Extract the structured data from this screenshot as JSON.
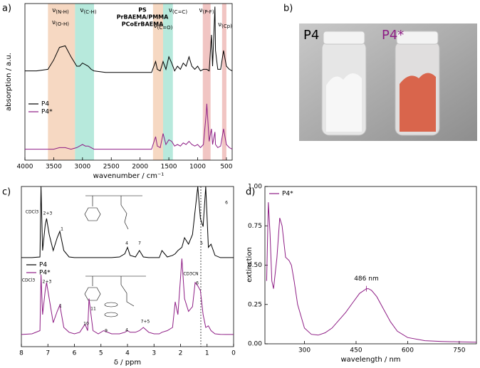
{
  "chart_data": [
    {
      "type": "line",
      "panel_label": "a)",
      "xlabel": "wavenumber / cm⁻¹",
      "ylabel": "absorption / a.u.",
      "x": [
        4000,
        3800,
        3600,
        3500,
        3400,
        3300,
        3200,
        3100,
        3050,
        3000,
        2950,
        2900,
        2850,
        2800,
        2600,
        2400,
        2200,
        2000,
        1800,
        1730,
        1700,
        1650,
        1600,
        1550,
        1500,
        1450,
        1400,
        1350,
        1300,
        1250,
        1200,
        1150,
        1100,
        1050,
        1000,
        950,
        900,
        850,
        840,
        800,
        760,
        740,
        700,
        690,
        650,
        600,
        550,
        500,
        450,
        400
      ],
      "series": [
        {
          "name": "P4",
          "color": "#000000",
          "values": [
            0.57,
            0.57,
            0.58,
            0.64,
            0.72,
            0.73,
            0.66,
            0.6,
            0.6,
            0.62,
            0.61,
            0.6,
            0.58,
            0.57,
            0.56,
            0.56,
            0.56,
            0.56,
            0.56,
            0.63,
            0.58,
            0.57,
            0.63,
            0.58,
            0.66,
            0.62,
            0.57,
            0.6,
            0.58,
            0.62,
            0.6,
            0.66,
            0.6,
            0.58,
            0.6,
            0.57,
            0.58,
            0.58,
            0.58,
            0.57,
            0.8,
            0.6,
            0.98,
            0.7,
            0.58,
            0.58,
            0.7,
            0.6,
            0.58,
            0.57
          ]
        },
        {
          "name": "P4*",
          "color": "#8e1d85",
          "values": [
            0.07,
            0.07,
            0.07,
            0.07,
            0.08,
            0.08,
            0.07,
            0.08,
            0.09,
            0.1,
            0.09,
            0.09,
            0.08,
            0.07,
            0.07,
            0.07,
            0.07,
            0.07,
            0.07,
            0.15,
            0.09,
            0.08,
            0.17,
            0.1,
            0.13,
            0.12,
            0.09,
            0.1,
            0.09,
            0.11,
            0.1,
            0.12,
            0.1,
            0.09,
            0.1,
            0.08,
            0.1,
            0.3,
            0.36,
            0.12,
            0.2,
            0.1,
            0.18,
            0.1,
            0.08,
            0.09,
            0.2,
            0.1,
            0.08,
            0.07
          ]
        }
      ],
      "bands": [
        {
          "name": "PS",
          "color": "#5fcfb1",
          "ranges": [
            [
              3130,
              2800
            ],
            [
              1600,
              1430
            ]
          ]
        },
        {
          "name": "PrBAEMA/PMMA",
          "color": "#eba978",
          "ranges": [
            [
              3600,
              3130
            ],
            [
              1775,
              1600
            ]
          ]
        },
        {
          "name": "PCoErBAEMA",
          "color": "#e07f79",
          "ranges": [
            [
              910,
              775
            ],
            [
              575,
              500
            ]
          ]
        }
      ],
      "annotations": [
        "ν(N-H)",
        "ν(O-H)",
        "ν(C-H)",
        "ν(C=O)",
        "ν(C=C)",
        "ν(P-F)",
        "ν(Cp)"
      ],
      "xlim": [
        4000,
        400
      ],
      "xticks": [
        4000,
        3500,
        3000,
        2500,
        2000,
        1500,
        1000,
        500
      ],
      "ylim": [
        0,
        1
      ]
    },
    {
      "type": "line",
      "panel_label": "c)",
      "xlabel": "δ / ppm",
      "x": [
        8,
        7.6,
        7.3,
        7.26,
        7.2,
        7.1,
        7.05,
        6.95,
        6.8,
        6.65,
        6.55,
        6.4,
        6.2,
        6,
        5.8,
        5.6,
        5.5,
        5.45,
        5.3,
        5.1,
        4.9,
        4.6,
        4.3,
        4.1,
        4.0,
        3.9,
        3.7,
        3.55,
        3.4,
        3.2,
        3.0,
        2.8,
        2.7,
        2.5,
        2.3,
        2.2,
        2.1,
        1.95,
        1.85,
        1.7,
        1.55,
        1.45,
        1.35,
        1.25,
        1.15,
        1.05,
        0.95,
        0.85,
        0.7,
        0.5,
        0.3,
        0
      ],
      "series": [
        {
          "name": "P4",
          "color": "#000000",
          "values": [
            0.556,
            0.556,
            0.56,
            1.0,
            0.6,
            0.76,
            0.8,
            0.7,
            0.6,
            0.68,
            0.72,
            0.6,
            0.56,
            0.556,
            0.556,
            0.556,
            0.556,
            0.556,
            0.556,
            0.556,
            0.556,
            0.556,
            0.56,
            0.58,
            0.62,
            0.57,
            0.56,
            0.6,
            0.56,
            0.556,
            0.556,
            0.556,
            0.6,
            0.56,
            0.57,
            0.58,
            0.6,
            0.62,
            0.68,
            0.64,
            0.7,
            0.85,
            1.0,
            0.8,
            0.75,
            1.0,
            0.62,
            0.64,
            0.57,
            0.556,
            0.556,
            0.556
          ],
          "peak_labels": [
            "CDCl3",
            "2+3",
            "1",
            "4",
            "7",
            "5",
            "6"
          ]
        },
        {
          "name": "P4*",
          "color": "#8e1d85",
          "values": [
            0.076,
            0.08,
            0.1,
            0.45,
            0.2,
            0.35,
            0.4,
            0.3,
            0.15,
            0.22,
            0.26,
            0.12,
            0.09,
            0.08,
            0.09,
            0.14,
            0.1,
            0.3,
            0.1,
            0.08,
            0.1,
            0.08,
            0.08,
            0.09,
            0.1,
            0.09,
            0.09,
            0.1,
            0.12,
            0.09,
            0.08,
            0.08,
            0.09,
            0.1,
            0.12,
            0.28,
            0.2,
            0.55,
            0.3,
            0.22,
            0.25,
            0.4,
            0.38,
            0.35,
            0.2,
            0.12,
            0.13,
            0.1,
            0.08,
            0.077,
            0.076,
            0.076
          ],
          "peak_labels": [
            "CDCl3",
            "2+3",
            "10",
            "1",
            "11",
            "9",
            "4",
            "7+5",
            "CD3CN",
            "6"
          ]
        }
      ],
      "xlim": [
        8,
        0
      ],
      "xticks": [
        8,
        7,
        6,
        5,
        4,
        3,
        2,
        1,
        0
      ],
      "ylim": [
        0,
        1
      ]
    },
    {
      "type": "line",
      "panel_label": "d)",
      "xlabel": "wavelength / nm",
      "ylabel": "extinction",
      "x": [
        190,
        195,
        200,
        205,
        210,
        220,
        228,
        235,
        245,
        255,
        262,
        270,
        280,
        300,
        320,
        340,
        360,
        380,
        400,
        420,
        440,
        460,
        480,
        486,
        495,
        510,
        530,
        550,
        570,
        600,
        650,
        700,
        750,
        800
      ],
      "series": [
        {
          "name": "P4*",
          "color": "#8e1d85",
          "values": [
            0.4,
            0.9,
            0.7,
            0.4,
            0.35,
            0.55,
            0.8,
            0.75,
            0.55,
            0.53,
            0.5,
            0.4,
            0.25,
            0.1,
            0.06,
            0.055,
            0.07,
            0.1,
            0.15,
            0.2,
            0.26,
            0.32,
            0.35,
            0.35,
            0.34,
            0.3,
            0.22,
            0.14,
            0.08,
            0.04,
            0.02,
            0.015,
            0.012,
            0.01
          ]
        }
      ],
      "annotations": [
        "486 nm"
      ],
      "xlim": [
        185,
        800
      ],
      "xticks": [
        300,
        450,
        600,
        750
      ],
      "ylim": [
        0,
        1
      ],
      "yticks": [
        {
          "value": 0,
          "label": "0.00"
        },
        {
          "value": 0.25,
          "label": "0.25"
        },
        {
          "value": 0.5,
          "label": "0.50"
        },
        {
          "value": 0.75,
          "label": "0.75"
        },
        {
          "value": 1,
          "label": "1.00"
        }
      ]
    }
  ],
  "photo": {
    "panel_label": "b)",
    "labels": [
      "P4",
      "P4*"
    ]
  }
}
